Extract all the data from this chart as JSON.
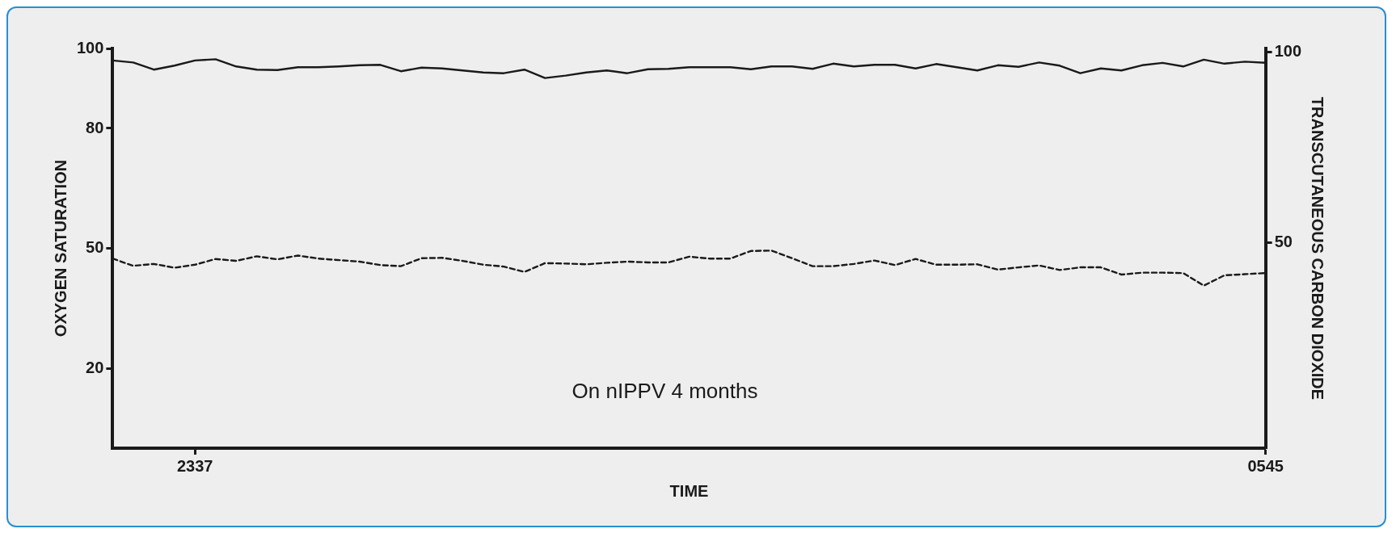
{
  "chart_data": {
    "type": "line",
    "xlabel": "TIME",
    "ylabel": "OXYGEN SATURATION",
    "y2label": "TRANSCUTANEOUS CARBON DIOXIDE",
    "annotations": [
      "On nIPPV 4 months"
    ],
    "categories": [
      null,
      null,
      null,
      null,
      "2337",
      null,
      null,
      null,
      null,
      null,
      null,
      null,
      null,
      null,
      null,
      null,
      null,
      null,
      null,
      null,
      null,
      null,
      null,
      null,
      null,
      null,
      null,
      null,
      null,
      null,
      null,
      null,
      null,
      null,
      null,
      null,
      null,
      null,
      null,
      null,
      null,
      null,
      null,
      null,
      null,
      null,
      null,
      null,
      null,
      null,
      null,
      null,
      null,
      null,
      null,
      null,
      "0545"
    ],
    "ylim": [
      0,
      100
    ],
    "yticks": [
      20,
      50,
      80,
      100
    ],
    "y2lim": [
      -4,
      101
    ],
    "y2ticks": [
      50,
      100
    ],
    "grid": false,
    "legend": false,
    "marker": "none",
    "series": [
      {
        "color": "#1a1a1a",
        "line_style": "solid",
        "values": [
          97.0,
          96.5,
          94.7,
          95.7,
          97.0,
          97.3,
          95.5,
          94.7,
          94.6,
          95.3,
          95.3,
          95.5,
          95.8,
          95.9,
          94.3,
          95.2,
          95.0,
          94.5,
          94.0,
          93.8,
          94.7,
          92.6,
          93.2,
          94.0,
          94.5,
          93.8,
          94.8,
          94.9,
          95.3,
          95.3,
          95.3,
          94.8,
          95.5,
          95.5,
          94.9,
          96.2,
          95.5,
          95.9,
          95.9,
          95.0,
          96.1,
          95.3,
          94.5,
          95.8,
          95.4,
          96.5,
          95.7,
          93.8,
          95.0,
          94.5,
          95.8,
          96.4,
          95.5,
          97.2,
          96.2,
          96.7,
          96.4
        ]
      },
      {
        "color": "#1a1a1a",
        "line_style": "dashed",
        "axis": "y2",
        "values": [
          45.8,
          43.9,
          44.4,
          43.4,
          44.2,
          45.7,
          45.2,
          46.4,
          45.6,
          46.6,
          45.8,
          45.4,
          45.0,
          44.1,
          43.8,
          45.9,
          46.0,
          45.2,
          44.2,
          43.7,
          42.3,
          44.6,
          44.5,
          44.3,
          44.7,
          45.0,
          44.8,
          44.8,
          46.3,
          45.8,
          45.8,
          47.8,
          47.9,
          45.9,
          43.8,
          43.8,
          44.4,
          45.3,
          44.1,
          45.7,
          44.2,
          44.2,
          44.3,
          42.9,
          43.5,
          44.0,
          42.8,
          43.5,
          43.5,
          41.6,
          42.1,
          42.1,
          42.0,
          38.7,
          41.4,
          41.7,
          42.0
        ]
      }
    ]
  }
}
